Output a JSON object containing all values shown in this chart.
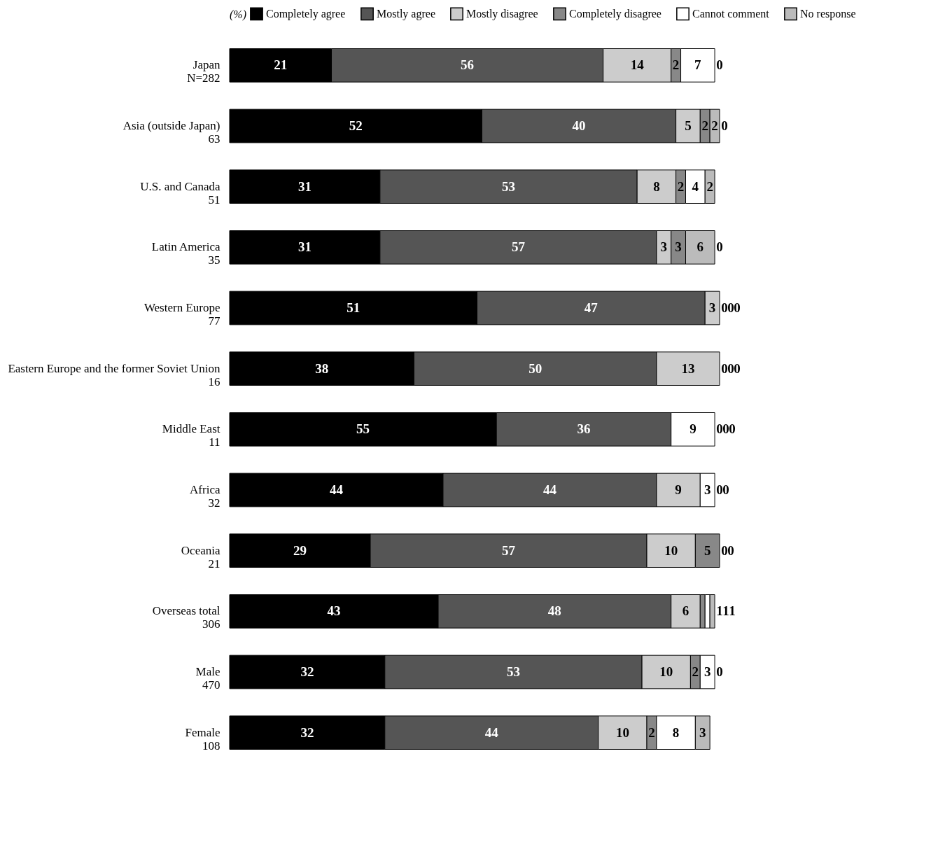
{
  "chart_data": {
    "type": "bar",
    "orientation": "horizontal",
    "stacked": true,
    "data_labels": true,
    "legend": "top",
    "legend_title": "(%)",
    "xlim": [
      0,
      101
    ],
    "tick_labels": "y",
    "categories": [
      "Japan\nN=282",
      "Asia (outside Japan)\n63",
      "U.S. and Canada\n51",
      "Latin America\n35",
      "Western Europe\n77",
      "Eastern Europe and the former Soviet Union\n16",
      "Middle East\n11",
      "Africa\n32",
      "Oceania\n21",
      "Overseas total\n306",
      "Male\n470",
      "Female\n108"
    ],
    "series": [
      {
        "name": "Completely agree",
        "color": "#000000",
        "values": [
          21,
          52,
          31,
          31,
          51,
          38,
          55,
          44,
          29,
          43,
          32,
          32
        ]
      },
      {
        "name": "Mostly agree",
        "color": "#555555",
        "values": [
          56,
          40,
          53,
          57,
          47,
          50,
          36,
          44,
          57,
          48,
          53,
          44
        ]
      },
      {
        "name": "Mostly disagree",
        "color": "#cccccc",
        "values": [
          14,
          5,
          8,
          3,
          3,
          13,
          0,
          9,
          10,
          6,
          10,
          10
        ]
      },
      {
        "name": "Completely disagree",
        "color": "#888888",
        "values": [
          2,
          2,
          2,
          3,
          0,
          0,
          0,
          0,
          5,
          1,
          2,
          2
        ]
      },
      {
        "name": "Cannot comment",
        "color": "#ffffff",
        "values": [
          7,
          0,
          4,
          0,
          0,
          0,
          9,
          3,
          0,
          1,
          3,
          8
        ]
      },
      {
        "name": "No response",
        "color": "#bbbbbb",
        "values": [
          0,
          2,
          2,
          6,
          0,
          0,
          0,
          0,
          0,
          1,
          0,
          3
        ]
      }
    ]
  }
}
